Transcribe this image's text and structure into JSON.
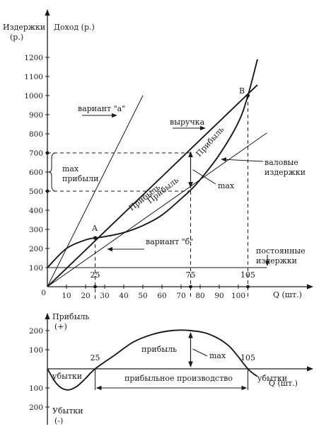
{
  "chart_data": [
    {
      "type": "line",
      "ylabel_left": "Издержки",
      "ylabel_left_unit": "(р.)",
      "ylabel_right": "Доход (р.)",
      "xlabel": "Q (шт.)",
      "xlim": [
        0,
        115
      ],
      "ylim": [
        0,
        1250
      ],
      "x_ticks": [
        "10",
        "20",
        "30",
        "40",
        "50",
        "60",
        "70",
        "80",
        "90",
        "100"
      ],
      "y_ticks": [
        "100",
        "200",
        "300",
        "400",
        "500",
        "600",
        "700",
        "800",
        "900",
        "1000",
        "1100",
        "1200"
      ],
      "marked_q": [
        "25",
        "75",
        "105"
      ],
      "series": [
        {
          "name": "выручка",
          "x": [
            0,
            10,
            20,
            30,
            40,
            50,
            60,
            70,
            80,
            90,
            100,
            105,
            110
          ],
          "y": [
            0,
            96,
            192,
            288,
            384,
            480,
            576,
            672,
            768,
            864,
            960,
            1008,
            1056
          ]
        },
        {
          "name": "валовые издержки",
          "x": [
            0,
            10,
            20,
            25,
            30,
            40,
            50,
            60,
            70,
            75,
            80,
            90,
            100,
            105,
            110
          ],
          "y": [
            100,
            200,
            245,
            255,
            262,
            283,
            320,
            375,
            460,
            505,
            560,
            690,
            860,
            1000,
            1190
          ]
        },
        {
          "name": "постоянные издержки",
          "x": [
            0,
            115
          ],
          "y": [
            100,
            100
          ]
        },
        {
          "name": "вариант \"а\"",
          "x": [
            0,
            50
          ],
          "y": [
            0,
            1000
          ]
        },
        {
          "name": "вариант \"б\"",
          "x": [
            0,
            115
          ],
          "y": [
            0,
            805
          ]
        }
      ],
      "points": [
        {
          "label": "A",
          "x": 25,
          "y": 255
        },
        {
          "label": "B",
          "x": 105,
          "y": 1000
        }
      ],
      "annotations": {
        "max_profit": "max прибыли",
        "profit": "Прибыль",
        "max": "max",
        "revenue_label": "выручка",
        "gross_costs": "валовые издержки",
        "fixed_costs": "постоянные издержки",
        "variant_a": "вариант \"а\"",
        "variant_b": "вариант \"б\""
      },
      "profit_band": [
        500,
        700
      ]
    },
    {
      "type": "line",
      "ylabel_top": "Прибыль",
      "ylabel_top_sign": "(+)",
      "ylabel_bottom": "Убытки",
      "ylabel_bottom_sign": "(-)",
      "xlabel": "Q (шт.)",
      "y_ticks_pos": [
        "200",
        "100"
      ],
      "y_ticks_neg": [
        "100",
        "200"
      ],
      "marked_q": [
        "25",
        "105"
      ],
      "series": [
        {
          "name": "прибыль",
          "x": [
            0,
            5,
            10,
            15,
            20,
            25,
            35,
            45,
            55,
            65,
            75,
            85,
            95,
            105,
            110
          ],
          "y": [
            0,
            -80,
            -110,
            -95,
            -50,
            0,
            70,
            140,
            180,
            200,
            200,
            180,
            120,
            0,
            -40
          ]
        }
      ],
      "annotations": {
        "profit": "прибыль",
        "max": "max",
        "loss_left": "убытки",
        "loss_right": "убытки",
        "profitable": "прибыльное производство"
      }
    }
  ]
}
